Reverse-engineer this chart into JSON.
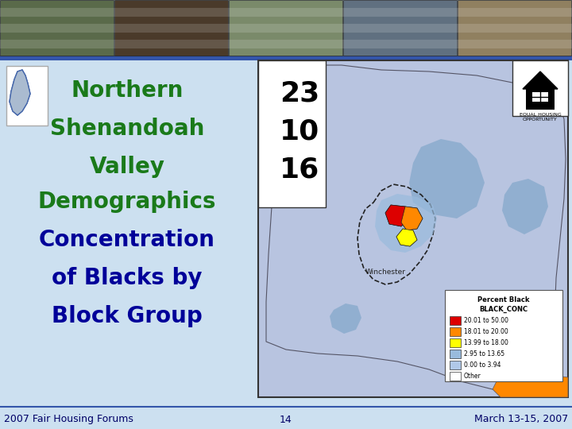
{
  "bg_color": "#cce0f0",
  "blue_bar_color": "#3355aa",
  "title_lines": [
    "Northern",
    "Shenandoah",
    "Valley",
    "Demographics",
    "Concentration",
    "of Blacks by",
    "Block Group"
  ],
  "title_color_green": "#1a7a1a",
  "title_color_blue": "#000099",
  "title_fontsize": 20,
  "map_bg": "#b8c4e0",
  "map_border_color": "#333333",
  "footer_text_left": "2007 Fair Housing Forums",
  "footer_text_center": "14",
  "footer_text_right": "March 13-15, 2007",
  "footer_fontsize": 9,
  "footer_color": "#000066",
  "footer_line_color": "#3355aa",
  "legend_title1": "Percent Black",
  "legend_title2": "BLACK_CONC",
  "legend_items": [
    {
      "label": "20.01 to 50.00",
      "color": "#DD0000"
    },
    {
      "label": "18.01 to 20.00",
      "color": "#FF8800"
    },
    {
      "label": "13.99 to 18.00",
      "color": "#FFFF00"
    },
    {
      "label": "2.95 to 13.65",
      "color": "#99bbdd"
    },
    {
      "label": "0.00 to 3.94",
      "color": "#b0c8e8"
    },
    {
      "label": "Other",
      "color": "#ffffff"
    }
  ],
  "num_labels": [
    "23",
    "10",
    "16"
  ],
  "num_label_fontsize": 26
}
